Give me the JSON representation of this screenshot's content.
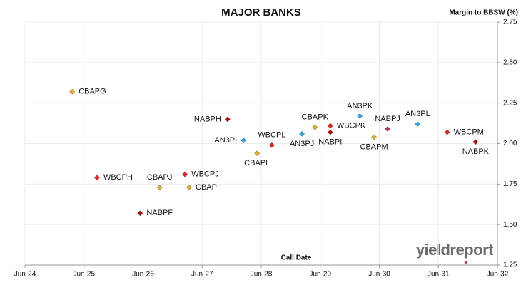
{
  "chart_data": {
    "type": "scatter",
    "title": "MAJOR BANKS",
    "ylabel": "Margin to BBSW (%)",
    "xlabel": "Call Date",
    "brand": "yieldreport",
    "labels": [
      "CBAPG",
      "WBCPH",
      "NABPF",
      "CBAPJ",
      "WBCPJ",
      "CBAPI",
      "NABPH",
      "AN3PI",
      "CBAPL",
      "WBCPL",
      "AN3PJ",
      "CBAPK",
      "WBCPK",
      "NABPI",
      "AN3PK",
      "CBAPM",
      "NABPJ",
      "AN3PL",
      "WBCPM",
      "NABPK"
    ],
    "x": [
      2025.3,
      2025.72,
      2026.45,
      2026.78,
      2027.21,
      2027.28,
      2027.93,
      2028.2,
      2028.43,
      2028.68,
      2029.19,
      2029.41,
      2029.67,
      2029.67,
      2030.17,
      2030.41,
      2030.64,
      2031.15,
      2031.65,
      2032.13
    ],
    "values": [
      2.32,
      1.79,
      1.57,
      1.73,
      1.81,
      1.73,
      2.15,
      2.02,
      1.94,
      1.99,
      2.06,
      2.1,
      2.11,
      2.07,
      2.17,
      2.04,
      2.09,
      2.12,
      2.07,
      2.01
    ],
    "colors": [
      "#e8b020",
      "#ff1a1a",
      "#c00000",
      "#e8b020",
      "#ff1a1a",
      "#e8b020",
      "#c00000",
      "#1fb0e6",
      "#e8b020",
      "#ff1a1a",
      "#1fb0e6",
      "#e8b020",
      "#ff1a1a",
      "#c00000",
      "#1fb0e6",
      "#e8b020",
      "#c0305a",
      "#1fb0e6",
      "#ff1a1a",
      "#c00000"
    ],
    "xlim": [
      2024.5,
      2032.5
    ],
    "xticks": [
      {
        "value": 2024.5,
        "label": "Jun-24"
      },
      {
        "value": 2025.5,
        "label": "Jun-25"
      },
      {
        "value": 2026.5,
        "label": "Jun-26"
      },
      {
        "value": 2027.5,
        "label": "Jun-27"
      },
      {
        "value": 2028.5,
        "label": "Jun-28"
      },
      {
        "value": 2029.5,
        "label": "Jun-29"
      },
      {
        "value": 2030.5,
        "label": "Jun-30"
      },
      {
        "value": 2031.5,
        "label": "Jun-31"
      },
      {
        "value": 2032.5,
        "label": "Jun-32"
      }
    ],
    "ylim": [
      1.25,
      2.75
    ],
    "yticks": [
      {
        "value": 1.25,
        "label": "1.25"
      },
      {
        "value": 1.5,
        "label": "1.50"
      },
      {
        "value": 1.75,
        "label": "1.75"
      },
      {
        "value": 2.0,
        "label": "2.00"
      },
      {
        "value": 2.25,
        "label": "2.25"
      },
      {
        "value": 2.5,
        "label": "2.50"
      },
      {
        "value": 2.75,
        "label": "2.75"
      }
    ],
    "grid": true
  }
}
